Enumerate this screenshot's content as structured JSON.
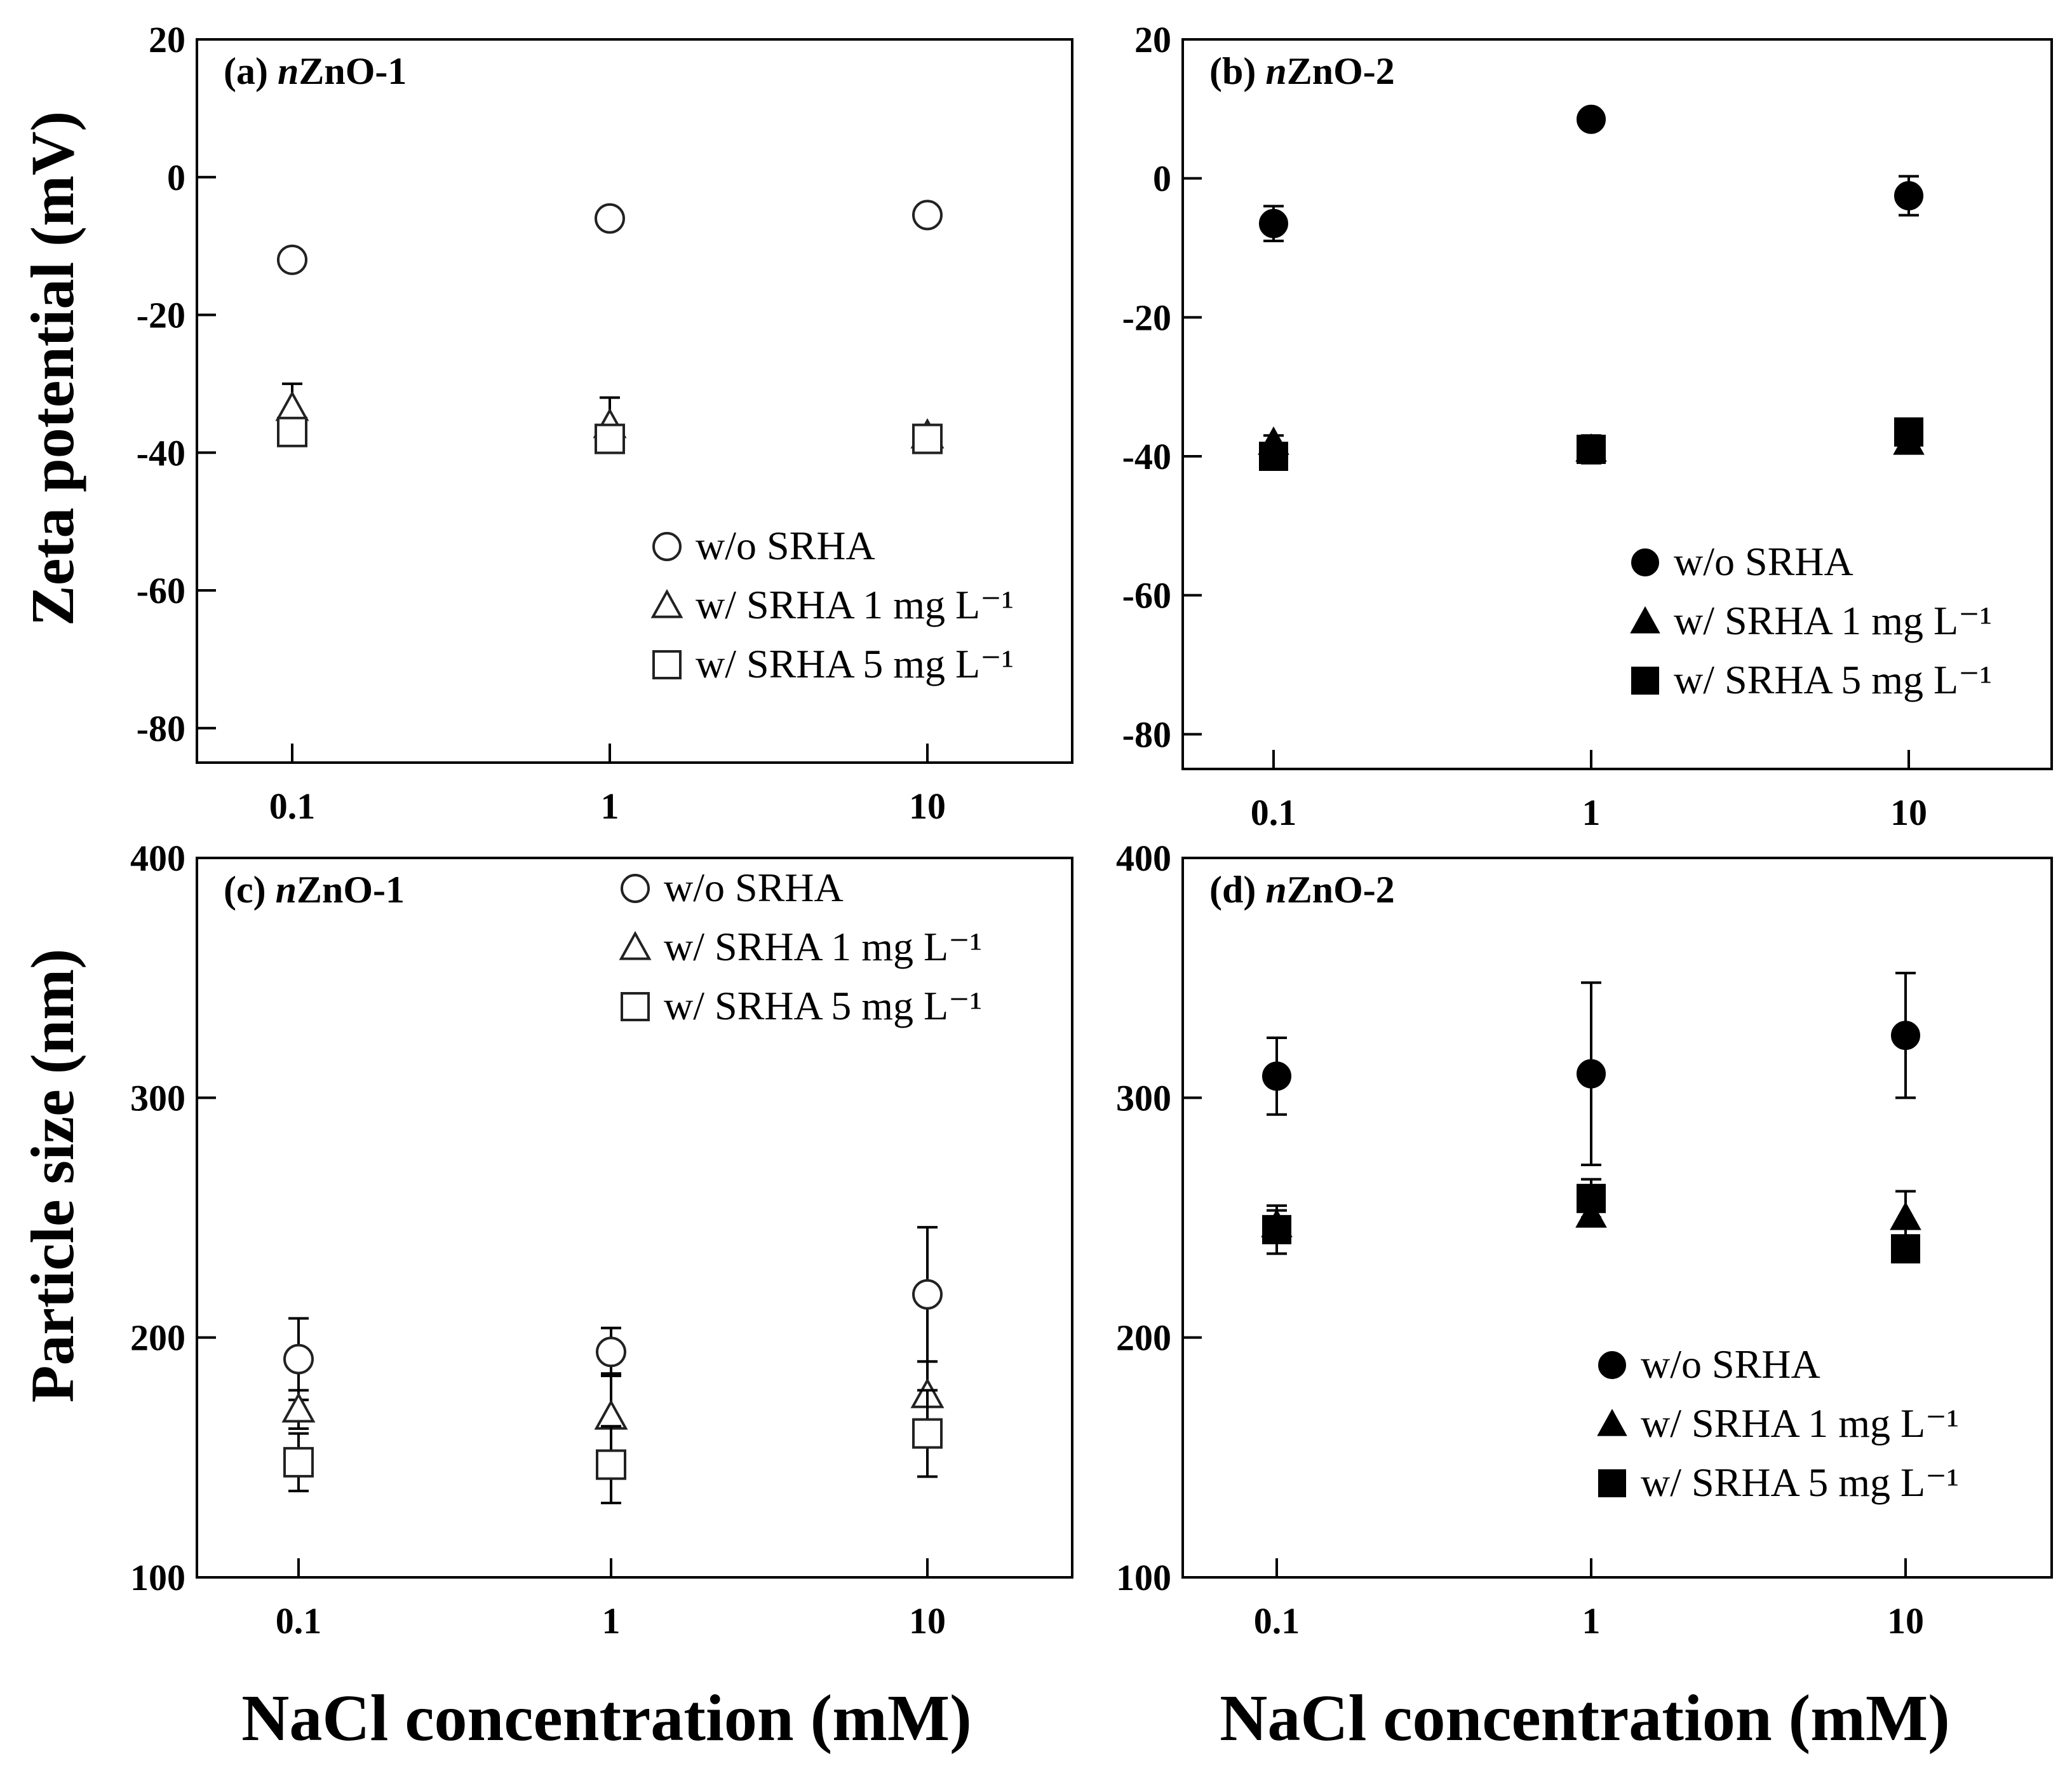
{
  "figure": {
    "ylabel_top": "Zeta potential (mV)",
    "ylabel_bottom": "Particle size (nm)",
    "xlabel": "NaCl concentration (mM)"
  },
  "chart_data": [
    {
      "id": "a",
      "type": "scatter",
      "title": "(a) nZnO-1",
      "label_prefix": "(a) ",
      "label_italic": "n",
      "label_rest": "ZnO-1",
      "xscale": "log",
      "x": [
        0.1,
        1,
        10
      ],
      "xticks": [
        "0.1",
        "1",
        "10"
      ],
      "xlabel": "NaCl concentration (mM)",
      "ylabel": "Zeta potential (mV)",
      "ylim": [
        -85,
        20
      ],
      "yticks": [
        20,
        0,
        -20,
        -40,
        -60,
        -80
      ],
      "marker_fill": "open",
      "legend_position": "lower-right",
      "series": [
        {
          "name": "w/o SRHA",
          "marker": "circle",
          "values": [
            -12,
            -6,
            -5.5
          ],
          "errors": [
            1.5,
            1.5,
            1.5
          ]
        },
        {
          "name": "w/ SRHA 1 mg L⁻¹",
          "marker": "triangle",
          "values": [
            -33.5,
            -36,
            -37.5
          ],
          "errors": [
            3.5,
            4,
            1.5
          ]
        },
        {
          "name": "w/ SRHA 5 mg L⁻¹",
          "marker": "square",
          "values": [
            -37,
            -38,
            -38
          ],
          "errors": [
            2,
            1.5,
            1.5
          ]
        }
      ]
    },
    {
      "id": "b",
      "type": "scatter",
      "title": "(b) nZnO-2",
      "label_prefix": "(b) ",
      "label_italic": "n",
      "label_rest": "ZnO-2",
      "xscale": "log",
      "x": [
        0.1,
        1,
        10
      ],
      "xticks": [
        "0.1",
        "1",
        "10"
      ],
      "xlabel": "NaCl concentration (mM)",
      "ylabel": "Zeta potential (mV)",
      "ylim": [
        -85,
        20
      ],
      "yticks": [
        20,
        0,
        -20,
        -40,
        -60,
        -80
      ],
      "marker_fill": "filled",
      "legend_position": "lower-right",
      "series": [
        {
          "name": "w/o SRHA",
          "marker": "circle",
          "values": [
            -6.5,
            8.5,
            -2.5
          ],
          "errors": [
            2.5,
            1.0,
            2.8
          ]
        },
        {
          "name": "w/ SRHA 1 mg L⁻¹",
          "marker": "triangle",
          "values": [
            -38,
            -39,
            -38
          ],
          "errors": [
            1,
            1,
            1
          ]
        },
        {
          "name": "w/ SRHA 5 mg L⁻¹",
          "marker": "square",
          "values": [
            -40,
            -39,
            -36.5
          ],
          "errors": [
            1.5,
            2.0,
            1.5
          ]
        }
      ]
    },
    {
      "id": "c",
      "type": "scatter",
      "title": "(c) nZnO-1",
      "label_prefix": "(c) ",
      "label_italic": "n",
      "label_rest": "ZnO-1",
      "xscale": "log",
      "x": [
        0.1,
        1,
        10
      ],
      "xticks": [
        "0.1",
        "1",
        "10"
      ],
      "xlabel": "NaCl concentration (mM)",
      "ylabel": "Particle size (nm)",
      "ylim": [
        100,
        400
      ],
      "yticks": [
        400,
        300,
        200,
        100
      ],
      "marker_fill": "open",
      "legend_position": "top-right",
      "series": [
        {
          "name": "w/o SRHA",
          "marker": "circle",
          "values": [
            191,
            194,
            218
          ],
          "errors": [
            17,
            10,
            28
          ]
        },
        {
          "name": "w/ SRHA 1 mg L⁻¹",
          "marker": "triangle",
          "values": [
            170,
            167,
            176
          ],
          "errors": [
            8,
            18,
            14
          ]
        },
        {
          "name": "w/ SRHA 5 mg L⁻¹",
          "marker": "square",
          "values": [
            148,
            147,
            160
          ],
          "errors": [
            12,
            16,
            18
          ]
        }
      ]
    },
    {
      "id": "d",
      "type": "scatter",
      "title": "(d) nZnO-2",
      "label_prefix": "(d) ",
      "label_italic": "n",
      "label_rest": "ZnO-2",
      "xscale": "log",
      "x": [
        0.1,
        1,
        10
      ],
      "xticks": [
        "0.1",
        "1",
        "10"
      ],
      "xlabel": "NaCl concentration (mM)",
      "ylabel": "Particle size (nm)",
      "ylim": [
        100,
        400
      ],
      "yticks": [
        400,
        300,
        200,
        100
      ],
      "marker_fill": "filled",
      "legend_position": "lower-right",
      "series": [
        {
          "name": "w/o SRHA",
          "marker": "circle",
          "values": [
            309,
            310,
            326
          ],
          "errors": [
            16,
            38,
            26
          ]
        },
        {
          "name": "w/ SRHA 1 mg L⁻¹",
          "marker": "triangle",
          "values": [
            247,
            251,
            250
          ],
          "errors": [
            6,
            4,
            11
          ]
        },
        {
          "name": "w/ SRHA 5 mg L⁻¹",
          "marker": "square",
          "values": [
            245,
            258,
            237
          ],
          "errors": [
            10,
            8,
            4
          ]
        }
      ]
    }
  ]
}
